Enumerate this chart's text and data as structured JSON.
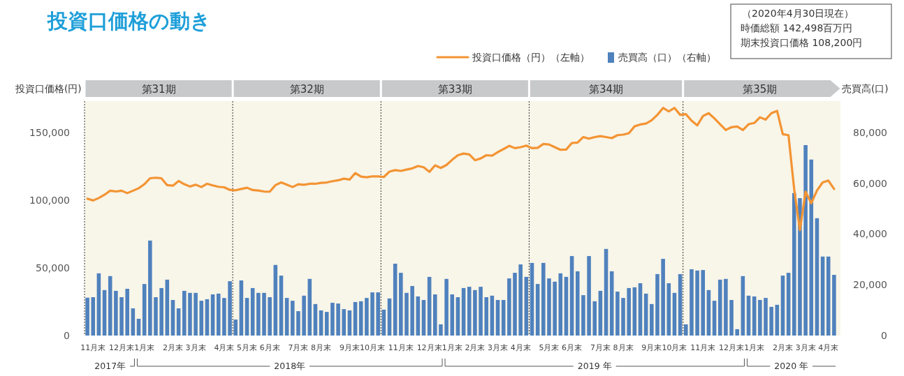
{
  "chart_data": {
    "type": "bar",
    "title": "投資口価格の動き",
    "categories": [
      null,
      "11月末",
      null,
      null,
      null,
      null,
      "12月末",
      null,
      null,
      null,
      "1月末",
      null,
      null,
      null,
      null,
      "2月末",
      null,
      null,
      null,
      "3月末",
      null,
      null,
      null,
      null,
      "4月末",
      null,
      null,
      null,
      "5月末",
      null,
      null,
      null,
      "6月末",
      null,
      null,
      null,
      null,
      "7月末",
      null,
      null,
      null,
      "8月末",
      null,
      null,
      null,
      null,
      "9月末",
      null,
      null,
      null,
      "10月末",
      null,
      null,
      null,
      null,
      "11月末",
      null,
      null,
      null,
      null,
      "12月末",
      null,
      null,
      null,
      "1月末",
      null,
      null,
      null,
      "2月末",
      null,
      null,
      null,
      "3月末",
      null,
      null,
      null,
      "4月末",
      null,
      null,
      null,
      null,
      "5月末",
      null,
      null,
      null,
      "6月末",
      null,
      null,
      null,
      null,
      "7月末",
      null,
      null,
      null,
      "8月末",
      null,
      null,
      null,
      null,
      "9月末",
      null,
      null,
      null,
      "10月末",
      null,
      null,
      null,
      null,
      "11月末",
      null,
      null,
      null,
      null,
      "12月末",
      null,
      null,
      null,
      "1月末",
      null,
      null,
      null,
      null,
      "2月末",
      null,
      null,
      null,
      "3月末",
      null,
      null,
      null,
      "4月末",
      null
    ],
    "series": [
      {
        "name": "売買高（口）（右軸）",
        "axis": "y2",
        "color": "#4f81bd",
        "values": [
          14900,
          15100,
          24500,
          17900,
          23400,
          17600,
          15100,
          18400,
          10700,
          6600,
          20300,
          37400,
          15100,
          18700,
          22000,
          14000,
          10700,
          17600,
          16800,
          16800,
          13700,
          14300,
          16200,
          16500,
          14800,
          21400,
          6300,
          21700,
          14800,
          18700,
          16800,
          16800,
          15100,
          27800,
          23600,
          14800,
          13700,
          9600,
          15700,
          22300,
          12400,
          9900,
          9300,
          12900,
          12600,
          10400,
          9900,
          13200,
          13500,
          14800,
          17000,
          17000,
          10200,
          14600,
          28300,
          24700,
          16800,
          19500,
          15400,
          14000,
          23100,
          16200,
          4400,
          22300,
          16200,
          15100,
          18700,
          19200,
          17900,
          19200,
          15100,
          15700,
          14000,
          14000,
          22500,
          24700,
          28000,
          23100,
          28600,
          20300,
          28600,
          22500,
          21200,
          24500,
          23100,
          31300,
          25300,
          15900,
          31300,
          13500,
          17600,
          34100,
          25300,
          17300,
          14800,
          18700,
          19000,
          20600,
          16500,
          12400,
          24200,
          30200,
          20600,
          16800,
          24200,
          4400,
          26100,
          25600,
          25800,
          17900,
          13700,
          22000,
          22300,
          14000,
          2500,
          23400,
          15700,
          15400,
          14000,
          14800,
          11300,
          12100,
          23600,
          24700,
          56100,
          54100,
          75000,
          69300,
          46200,
          31100,
          31100,
          23900
        ]
      },
      {
        "name": "投資口価格（円）（左軸）",
        "type": "line",
        "axis": "y",
        "color": "#f39433",
        "values": [
          101000,
          99700,
          101500,
          103900,
          106900,
          106300,
          106900,
          105100,
          106900,
          108700,
          111700,
          116100,
          116500,
          116000,
          111000,
          110600,
          114100,
          111700,
          110000,
          111300,
          109600,
          112000,
          110800,
          109800,
          109400,
          107500,
          107200,
          108200,
          109100,
          107400,
          107000,
          106300,
          106200,
          111000,
          113000,
          111300,
          109600,
          111700,
          111300,
          112000,
          112000,
          112700,
          113000,
          113900,
          114600,
          115800,
          115100,
          119900,
          117300,
          116800,
          117500,
          117500,
          117000,
          121000,
          122100,
          121500,
          122500,
          123400,
          125100,
          124200,
          120800,
          125600,
          123700,
          125900,
          129700,
          133100,
          134300,
          133700,
          129400,
          130700,
          133100,
          132800,
          135400,
          137600,
          140000,
          138300,
          139000,
          140200,
          138300,
          138600,
          141400,
          141000,
          139000,
          137100,
          137300,
          142100,
          142400,
          146500,
          145300,
          146500,
          147200,
          146500,
          145700,
          147900,
          148300,
          149300,
          154400,
          155800,
          156500,
          158900,
          162900,
          168000,
          165400,
          168000,
          162900,
          163400,
          158600,
          155100,
          162000,
          164100,
          160300,
          156000,
          151700,
          153800,
          154300,
          151700,
          156000,
          156900,
          161100,
          159400,
          164100,
          165800,
          148600,
          147900,
          107900,
          77800,
          106200,
          97600,
          107000,
          113000,
          114400,
          108200
        ]
      }
    ],
    "ylabel": "投資口価格(円)",
    "y2label": "売買高(口)",
    "ylim": [
      0,
      173000
    ],
    "yticks": [
      0,
      {
        "value": 50000,
        "label": "50,000"
      },
      {
        "value": 100000,
        "label": "100,000"
      },
      {
        "value": 150000,
        "label": "150,000"
      }
    ],
    "y2lim": [
      0,
      92300
    ],
    "y2ticks": [
      0,
      {
        "value": 20000,
        "label": "20,000"
      },
      {
        "value": 40000,
        "label": "40,000"
      },
      {
        "value": 60000,
        "label": "60,000"
      },
      {
        "value": 80000,
        "label": "80,000"
      }
    ],
    "legend": "top right",
    "annotations": [
      "（2020年4月30日現在）",
      "時価総額 142,498百万円",
      "期末投資口価格 108,200円",
      "第31期",
      "第32期",
      "第33期",
      "第34期",
      "第35期",
      "2017年",
      "2018年",
      "2019 年",
      "2020 年"
    ]
  }
}
